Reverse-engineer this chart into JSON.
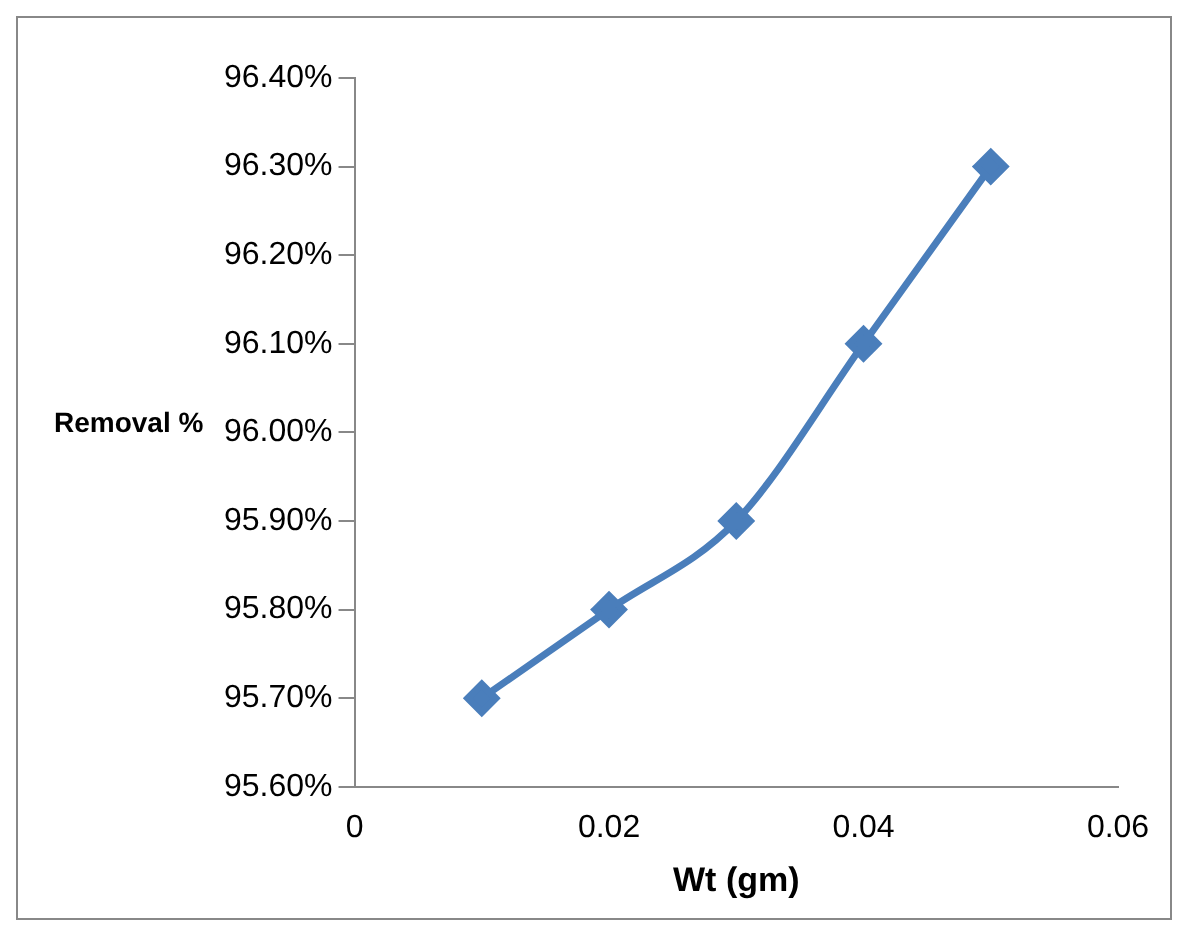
{
  "chart_data": {
    "type": "line",
    "xlabel": "Wt (gm)",
    "ylabel": "Removal %",
    "x": [
      0.01,
      0.02,
      0.03,
      0.04,
      0.05
    ],
    "series": [
      {
        "color": "#4a7ebb",
        "values": [
          95.7,
          95.8,
          95.9,
          96.1,
          96.3
        ]
      }
    ],
    "xlim": [
      0,
      0.06
    ],
    "xticks": [
      0,
      0.02,
      0.04,
      0.06
    ],
    "ylim": [
      95.6,
      96.4
    ],
    "yticks": [
      {
        "value": 95.6,
        "label": "95.60%"
      },
      {
        "value": 95.7,
        "label": "95.70%"
      },
      {
        "value": 95.8,
        "label": "95.80%"
      },
      {
        "value": 95.9,
        "label": "95.90%"
      },
      {
        "value": 96.0,
        "label": "96.00%"
      },
      {
        "value": 96.1,
        "label": "96.10%"
      },
      {
        "value": 96.2,
        "label": "96.20%"
      },
      {
        "value": 96.3,
        "label": "96.30%"
      },
      {
        "value": 96.4,
        "label": "96.40%"
      }
    ],
    "grid": false,
    "legend": false,
    "marker": "diamond",
    "line_style": "solid"
  }
}
